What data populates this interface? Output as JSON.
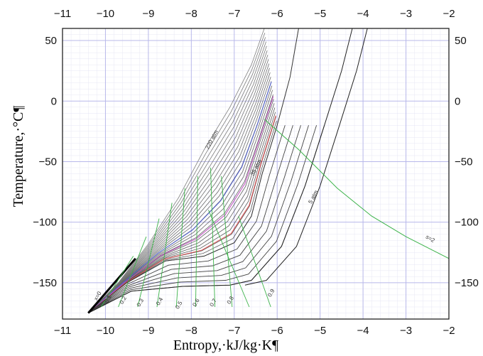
{
  "chart_data": {
    "type": "line",
    "title": "",
    "xlabel": "Entropy,·kJ/kg·K¶",
    "ylabel": "Temperature,·°C¶",
    "xlim": [
      -11,
      -2
    ],
    "ylim": [
      -180,
      60
    ],
    "xticks": [
      "−11",
      "−10",
      "−9",
      "−8",
      "−7",
      "−6",
      "−5",
      "−4",
      "−3",
      "−2"
    ],
    "yticks": [
      "50",
      "0",
      "−50",
      "−100",
      "−150"
    ],
    "ytick_values": [
      50,
      0,
      -50,
      -100,
      -150
    ],
    "grid": true,
    "colors": {
      "isobar": "#444444",
      "quality": "#3cb34a",
      "highlight_red": "#e05050",
      "highlight_blue": "#5060d0",
      "highlight_magenta": "#c050c0",
      "grid": "#b8b8ea"
    },
    "series": [
      {
        "name": "220 atm",
        "x": [
          -10.4,
          -9.7,
          -9.0,
          -8.3,
          -7.7,
          -7.1,
          -6.6,
          -6.3
        ],
        "y": [
          -175,
          -150,
          -118,
          -80,
          -40,
          -5,
          30,
          60
        ]
      },
      {
        "name": "35 atm",
        "x": [
          -10.4,
          -9.5,
          -8.6,
          -7.7,
          -7.0,
          -6.6,
          -6.35,
          -6.0,
          -5.7,
          -5.5
        ],
        "y": [
          -175,
          -150,
          -132,
          -128,
          -117,
          -95,
          -60,
          -20,
          20,
          60
        ]
      },
      {
        "name": "5 atm",
        "x": [
          -10.4,
          -9.4,
          -8.2,
          -7.1,
          -6.6,
          -5.9,
          -5.35,
          -4.9,
          -4.5,
          -4.25
        ],
        "y": [
          -175,
          -157,
          -153,
          -152,
          -148,
          -120,
          -70,
          -20,
          25,
          60
        ]
      },
      {
        "name": "s=2",
        "x": [
          -6.3,
          -5.5,
          -4.6,
          -3.8,
          -3.0,
          -2.0
        ],
        "y": [
          -15,
          -40,
          -72,
          -95,
          -112,
          -130
        ]
      }
    ],
    "quality_lines": [
      "x=0",
      "0.1",
      "0.2",
      "0.3",
      "0.4",
      "0.5",
      "0.6",
      "0.7",
      "0.8",
      "0.9"
    ],
    "annotations": [
      "220 atm",
      "35 atm",
      "5 atm",
      "s=2"
    ]
  }
}
